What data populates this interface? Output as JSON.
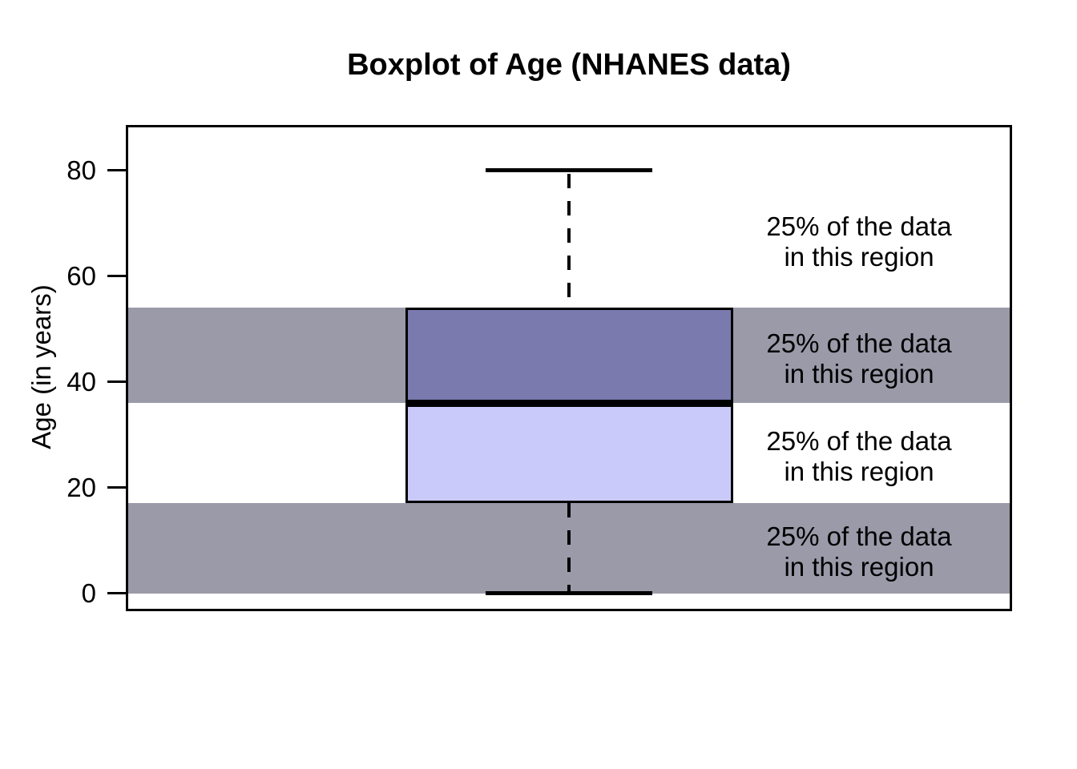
{
  "chart_data": {
    "type": "boxplot",
    "title": "Boxplot of Age (NHANES data)",
    "ylabel": "Age (in years)",
    "xlabel": "",
    "orientation": "vertical",
    "grid": false,
    "legend": "none",
    "stats": {
      "min": 0,
      "q1": 17,
      "median": 36,
      "q3": 54,
      "max": 80
    },
    "ylim": [
      0,
      80
    ],
    "y_ticks": [
      {
        "value": 0,
        "label": "0"
      },
      {
        "value": 20,
        "label": "20"
      },
      {
        "value": 40,
        "label": "40"
      },
      {
        "value": 60,
        "label": "60"
      },
      {
        "value": 80,
        "label": "80"
      }
    ],
    "shaded_bands": [
      {
        "from": 36,
        "to": 54
      },
      {
        "from": 0,
        "to": 17
      }
    ],
    "annotations": [
      {
        "line1": "25% of the data",
        "line2": "in this region",
        "region": [
          54,
          80
        ]
      },
      {
        "line1": "25% of the data",
        "line2": "in this region",
        "region": [
          36,
          54
        ]
      },
      {
        "line1": "25% of the data",
        "line2": "in this region",
        "region": [
          17,
          36
        ]
      },
      {
        "line1": "25% of the data",
        "line2": "in this region",
        "region": [
          0,
          17
        ]
      }
    ],
    "colors": {
      "box_upper_fill": "#7A7AAF",
      "box_lower_fill": "#CACAFA",
      "shaded_band": "#9A9AA9",
      "stroke": "#000000",
      "background": "#FFFFFF"
    }
  }
}
